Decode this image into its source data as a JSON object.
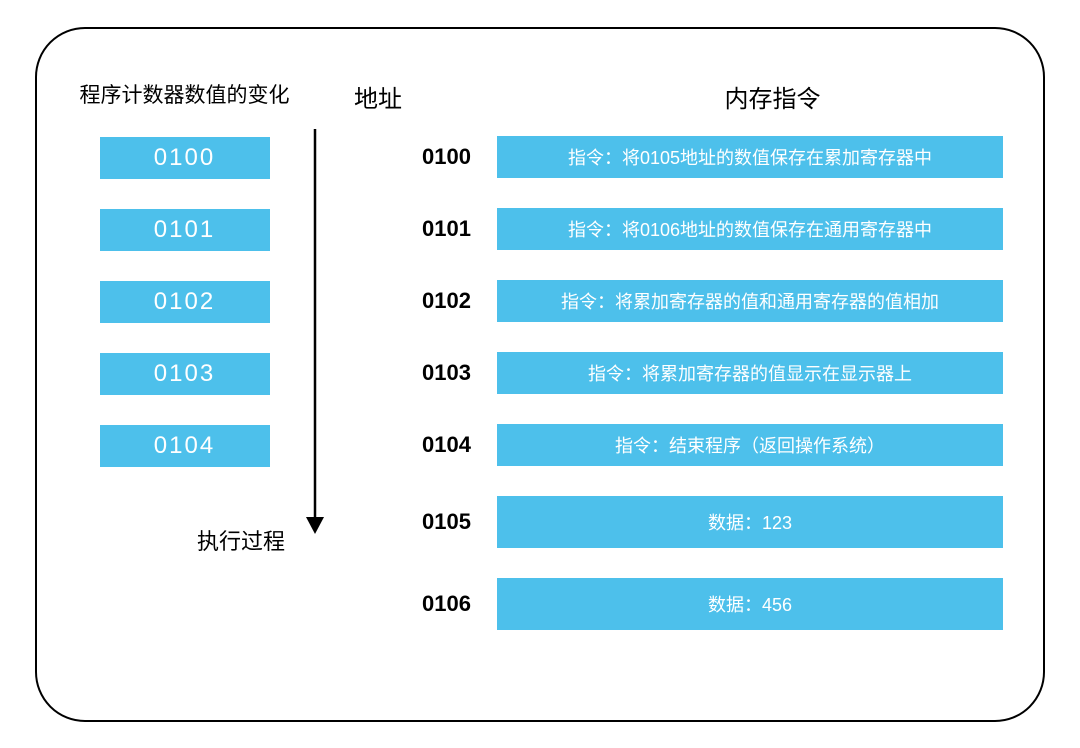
{
  "colors": {
    "box_bg": "#4dc0eb",
    "box_text": "#ffffff",
    "label_text": "#000000",
    "border": "#000000",
    "background": "#ffffff"
  },
  "layout": {
    "frame_width": 1010,
    "frame_height": 695,
    "frame_border_radius": 50,
    "frame_border_width": 2,
    "pc_box_width": 170,
    "pc_box_height": 42,
    "mem_box_height": 42,
    "data_box_height": 52,
    "row_gap": 30,
    "arrow_length": 390
  },
  "typography": {
    "header_fontsize": 24,
    "left_header_fontsize": 21,
    "pc_value_fontsize": 24,
    "addr_fontsize": 22,
    "addr_fontweight": 700,
    "instruction_fontsize": 18,
    "exec_label_fontsize": 22
  },
  "headers": {
    "left": "程序计数器数值的变化",
    "addr": "地址",
    "right": "内存指令",
    "exec": "执行过程"
  },
  "pc_values": [
    "0100",
    "0101",
    "0102",
    "0103",
    "0104"
  ],
  "memory": [
    {
      "addr": "0100",
      "text": "指令：将0105地址的数值保存在累加寄存器中",
      "tall": false
    },
    {
      "addr": "0101",
      "text": "指令：将0106地址的数值保存在通用寄存器中",
      "tall": false
    },
    {
      "addr": "0102",
      "text": "指令：将累加寄存器的值和通用寄存器的值相加",
      "tall": false
    },
    {
      "addr": "0103",
      "text": "指令：将累加寄存器的值显示在显示器上",
      "tall": false
    },
    {
      "addr": "0104",
      "text": "指令：结束程序（返回操作系统）",
      "tall": false
    },
    {
      "addr": "0105",
      "text": "数据：123",
      "tall": true
    },
    {
      "addr": "0106",
      "text": "数据：456",
      "tall": true
    }
  ]
}
